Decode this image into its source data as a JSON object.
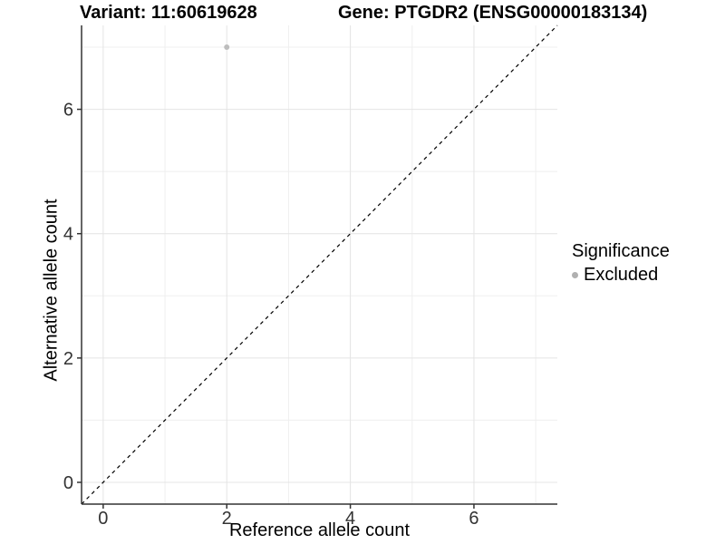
{
  "titles": {
    "left": "Variant: 11:60619628",
    "right": "Gene: PTGDR2 (ENSG00000183134)"
  },
  "chart_data": {
    "type": "scatter",
    "xlabel": "Reference allele count",
    "ylabel": "Alternative allele count",
    "xlim": [
      -0.35,
      7.35
    ],
    "ylim": [
      -0.35,
      7.35
    ],
    "x_major_ticks": [
      0,
      2,
      4,
      6
    ],
    "y_major_ticks": [
      0,
      2,
      4,
      6
    ],
    "x_minor_gridlines": [
      1,
      3,
      5,
      7
    ],
    "y_minor_gridlines": [
      1,
      3,
      5,
      7
    ],
    "grid": "major-and-minor",
    "identity_line": {
      "slope": 1,
      "intercept": 0,
      "linetype": "dashed",
      "color": "#000000"
    },
    "series": [
      {
        "name": "Excluded",
        "color": "#bdbdbd",
        "points": [
          {
            "x": 2,
            "y": 7
          }
        ]
      }
    ],
    "legend": {
      "title": "Significance",
      "position": "right",
      "items": [
        {
          "label": "Excluded",
          "color": "#b0b0b0"
        }
      ]
    }
  },
  "colors": {
    "background": "#ffffff",
    "grid_major": "#e4e4e4",
    "grid_minor": "#efefef",
    "axis_line": "#333333",
    "tick_mark": "#333333",
    "tick_text": "#333333",
    "point": "#bdbdbd"
  }
}
